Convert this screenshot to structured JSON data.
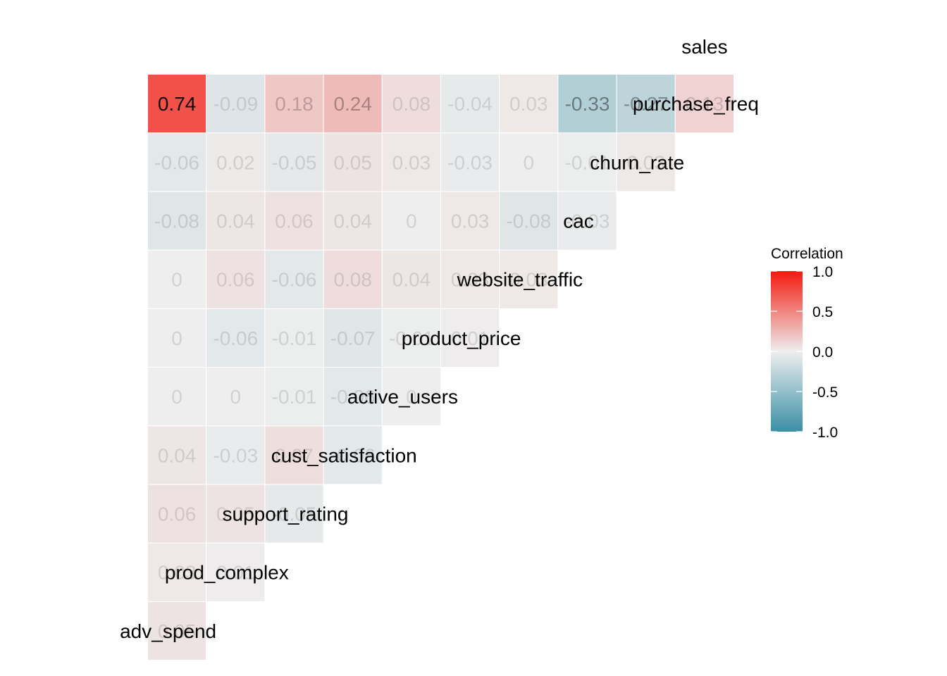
{
  "chart_data": {
    "type": "heatmap",
    "title": "",
    "variables": [
      "adv_spend",
      "prod_complex",
      "support_rating",
      "cust_satisfaction",
      "active_users",
      "product_price",
      "website_traffic",
      "cac",
      "churn_rate",
      "purchase_freq",
      "sales"
    ],
    "row_labels": [
      "adv_spend",
      "prod_complex",
      "support_rating",
      "cust_satisfaction",
      "active_users",
      "product_price",
      "website_traffic",
      "cac",
      "churn_rate",
      "purchase_freq"
    ],
    "column_labels": [
      "sales"
    ],
    "row_label_display": [
      "adv_spend",
      "prod_complex",
      "support_rating",
      "cust_satisfaction",
      "active_users",
      "product_price",
      "website_traffic",
      "cac",
      "churn_rate",
      "purchase_freq"
    ],
    "cells": [
      {
        "row": "prod_complex",
        "col": "adv_spend",
        "value": 0.05,
        "label": "0.05"
      },
      {
        "row": "support_rating",
        "col": "adv_spend",
        "value": 0.03,
        "label": "0.03"
      },
      {
        "row": "support_rating",
        "col": "prod_complex",
        "value": 0.01,
        "label": "0.01"
      },
      {
        "row": "cust_satisfaction",
        "col": "adv_spend",
        "value": 0.06,
        "label": "0.06"
      },
      {
        "row": "cust_satisfaction",
        "col": "prod_complex",
        "value": 0.05,
        "label": "0.05"
      },
      {
        "row": "cust_satisfaction",
        "col": "support_rating",
        "value": -0.05,
        "label": "-0.05"
      },
      {
        "row": "active_users",
        "col": "adv_spend",
        "value": 0.04,
        "label": "0.04"
      },
      {
        "row": "active_users",
        "col": "prod_complex",
        "value": -0.03,
        "label": "-0.03"
      },
      {
        "row": "active_users",
        "col": "support_rating",
        "value": 0.07,
        "label": "0.07"
      },
      {
        "row": "active_users",
        "col": "cust_satisfaction",
        "value": -0.06,
        "label": "-0.06"
      },
      {
        "row": "product_price",
        "col": "adv_spend",
        "value": 0,
        "label": "0"
      },
      {
        "row": "product_price",
        "col": "prod_complex",
        "value": 0,
        "label": "0"
      },
      {
        "row": "product_price",
        "col": "support_rating",
        "value": -0.01,
        "label": "-0.01"
      },
      {
        "row": "product_price",
        "col": "cust_satisfaction",
        "value": -0.06,
        "label": "-0.06"
      },
      {
        "row": "product_price",
        "col": "active_users",
        "value": 0,
        "label": "0"
      },
      {
        "row": "website_traffic",
        "col": "adv_spend",
        "value": 0,
        "label": "0"
      },
      {
        "row": "website_traffic",
        "col": "prod_complex",
        "value": -0.06,
        "label": "-0.06"
      },
      {
        "row": "website_traffic",
        "col": "support_rating",
        "value": -0.01,
        "label": "-0.01"
      },
      {
        "row": "website_traffic",
        "col": "cust_satisfaction",
        "value": -0.07,
        "label": "-0.07"
      },
      {
        "row": "website_traffic",
        "col": "active_users",
        "value": -0.01,
        "label": "-0.01"
      },
      {
        "row": "website_traffic",
        "col": "product_price",
        "value": 0.01,
        "label": "0.01"
      },
      {
        "row": "cac",
        "col": "adv_spend",
        "value": 0,
        "label": "0"
      },
      {
        "row": "cac",
        "col": "prod_complex",
        "value": 0.06,
        "label": "0.06"
      },
      {
        "row": "cac",
        "col": "support_rating",
        "value": -0.06,
        "label": "-0.06"
      },
      {
        "row": "cac",
        "col": "cust_satisfaction",
        "value": 0.08,
        "label": "0.08"
      },
      {
        "row": "cac",
        "col": "active_users",
        "value": 0.04,
        "label": "0.04"
      },
      {
        "row": "cac",
        "col": "product_price",
        "value": 0.03,
        "label": "0.03"
      },
      {
        "row": "cac",
        "col": "website_traffic",
        "value": 0.03,
        "label": "0.03"
      },
      {
        "row": "churn_rate",
        "col": "adv_spend",
        "value": -0.08,
        "label": "-0.08"
      },
      {
        "row": "churn_rate",
        "col": "prod_complex",
        "value": 0.04,
        "label": "0.04"
      },
      {
        "row": "churn_rate",
        "col": "support_rating",
        "value": 0.06,
        "label": "0.06"
      },
      {
        "row": "churn_rate",
        "col": "cust_satisfaction",
        "value": 0.04,
        "label": "0.04"
      },
      {
        "row": "churn_rate",
        "col": "active_users",
        "value": 0,
        "label": "0"
      },
      {
        "row": "churn_rate",
        "col": "product_price",
        "value": 0.03,
        "label": "0.03"
      },
      {
        "row": "churn_rate",
        "col": "website_traffic",
        "value": -0.08,
        "label": "-0.08"
      },
      {
        "row": "churn_rate",
        "col": "cac",
        "value": -0.03,
        "label": "-0.03"
      },
      {
        "row": "purchase_freq",
        "col": "adv_spend",
        "value": -0.06,
        "label": "-0.06"
      },
      {
        "row": "purchase_freq",
        "col": "prod_complex",
        "value": 0.02,
        "label": "0.02"
      },
      {
        "row": "purchase_freq",
        "col": "support_rating",
        "value": -0.05,
        "label": "-0.05"
      },
      {
        "row": "purchase_freq",
        "col": "cust_satisfaction",
        "value": 0.05,
        "label": "0.05"
      },
      {
        "row": "purchase_freq",
        "col": "active_users",
        "value": 0.03,
        "label": "0.03"
      },
      {
        "row": "purchase_freq",
        "col": "product_price",
        "value": -0.03,
        "label": "-0.03"
      },
      {
        "row": "purchase_freq",
        "col": "website_traffic",
        "value": 0,
        "label": "0"
      },
      {
        "row": "purchase_freq",
        "col": "cac",
        "value": -0.01,
        "label": "-0.01"
      },
      {
        "row": "purchase_freq",
        "col": "churn_rate",
        "value": 0.03,
        "label": "0.03"
      },
      {
        "row": "sales",
        "col": "adv_spend",
        "value": 0.74,
        "label": "0.74"
      },
      {
        "row": "sales",
        "col": "prod_complex",
        "value": -0.09,
        "label": "-0.09"
      },
      {
        "row": "sales",
        "col": "support_rating",
        "value": 0.18,
        "label": "0.18"
      },
      {
        "row": "sales",
        "col": "cust_satisfaction",
        "value": 0.24,
        "label": "0.24"
      },
      {
        "row": "sales",
        "col": "active_users",
        "value": 0.08,
        "label": "0.08"
      },
      {
        "row": "sales",
        "col": "product_price",
        "value": -0.04,
        "label": "-0.04"
      },
      {
        "row": "sales",
        "col": "website_traffic",
        "value": 0.03,
        "label": "0.03"
      },
      {
        "row": "sales",
        "col": "cac",
        "value": -0.33,
        "label": "-0.33"
      },
      {
        "row": "sales",
        "col": "churn_rate",
        "value": -0.27,
        "label": "-0.27"
      },
      {
        "row": "sales",
        "col": "purchase_freq",
        "value": 0.13,
        "label": "0.13"
      }
    ],
    "legend": {
      "title": "Correlation",
      "placement": "right",
      "range": [
        -1,
        1
      ],
      "ticks": [
        "1.0",
        "0.5",
        "0.0",
        "-0.5",
        "-1.0"
      ],
      "tick_values": [
        1,
        0.5,
        0,
        -0.5,
        -1
      ],
      "low_color": "#3A8FA6",
      "mid_color": "#EEEEEE",
      "high_color": "#F21A0F"
    },
    "grid": false
  }
}
